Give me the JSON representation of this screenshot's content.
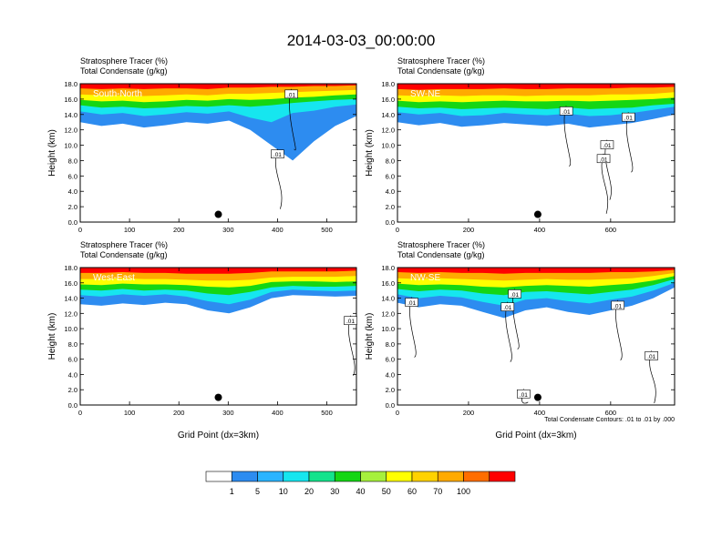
{
  "figure": {
    "title": "2014-03-03_00:00:00",
    "contour_note": "Total Condensate Contours: .01 to .01 by .000"
  },
  "colors": {
    "bins": [
      "#ffffff",
      "#2d8cf0",
      "#2ab4ff",
      "#16e6ef",
      "#14e38c",
      "#15d614",
      "#a6f03c",
      "#ffff00",
      "#ffd200",
      "#ffaa00",
      "#ff6e00",
      "#ff0000"
    ],
    "axes": "#000000",
    "contour": "#000000"
  },
  "chart_data": [
    {
      "type": "heatmap",
      "panel_label": "South-North",
      "title_lines": [
        "Stratosphere Tracer   (%)",
        "Total Condensate   (g/kg)"
      ],
      "xlabel": "",
      "ylabel": "Height (km)",
      "xlim": [
        0,
        560
      ],
      "ylim": [
        0,
        18
      ],
      "xticks": [
        0,
        100,
        200,
        300,
        400,
        500
      ],
      "yticks": [
        "0.0",
        "2.0",
        "4.0",
        "6.0",
        "8.0",
        "10.0",
        "12.0",
        "14.0",
        "16.0",
        "18.0"
      ],
      "tracer_layers": [
        {
          "level": 1,
          "base_km": [
            13.0,
            12.5,
            12.8,
            12.3,
            12.6,
            13.0,
            12.8,
            13.2,
            12.0,
            10.0,
            8.0,
            10.5,
            12.5,
            13.8
          ]
        },
        {
          "level": 10,
          "base_km": [
            14.4,
            14.0,
            14.2,
            13.8,
            14.0,
            14.3,
            14.1,
            14.4,
            13.6,
            13.0,
            14.2,
            14.5,
            15.0,
            15.3
          ]
        },
        {
          "level": 30,
          "base_km": [
            15.2,
            14.9,
            15.0,
            14.8,
            14.9,
            15.1,
            15.0,
            15.2,
            15.0,
            15.2,
            15.5,
            15.7,
            15.9,
            16.0
          ]
        },
        {
          "level": 50,
          "base_km": [
            15.9,
            15.7,
            15.8,
            15.6,
            15.7,
            15.9,
            15.8,
            16.0,
            15.9,
            16.0,
            16.2,
            16.3,
            16.5,
            16.6
          ]
        },
        {
          "level": 70,
          "base_km": [
            16.6,
            16.5,
            16.5,
            16.4,
            16.5,
            16.6,
            16.5,
            16.7,
            16.7,
            16.8,
            16.9,
            17.0,
            17.1,
            17.2
          ]
        },
        {
          "level": 100,
          "base_km": [
            17.4,
            17.3,
            17.4,
            17.3,
            17.4,
            17.4,
            17.3,
            17.5,
            17.5,
            17.6,
            17.6,
            17.7,
            17.7,
            17.8
          ]
        }
      ],
      "contour_labels": [
        {
          "text": ".01",
          "x": 428,
          "y": 16.6
        },
        {
          "text": ".01",
          "x": 400,
          "y": 8.8
        }
      ],
      "marker": {
        "x": 280,
        "y": 1.0
      }
    },
    {
      "type": "heatmap",
      "panel_label": "SW-NE",
      "title_lines": [
        "Stratosphere Tracer   (%)",
        "Total Condensate   (g/kg)"
      ],
      "xlabel": "",
      "ylabel": "Height (km)",
      "xlim": [
        0,
        780
      ],
      "ylim": [
        0,
        18
      ],
      "xticks": [
        0,
        200,
        400,
        600
      ],
      "yticks": [
        "0.0",
        "2.0",
        "4.0",
        "6.0",
        "8.0",
        "10.0",
        "12.0",
        "14.0",
        "16.0",
        "18.0"
      ],
      "tracer_layers": [
        {
          "level": 1,
          "base_km": [
            13.0,
            12.6,
            12.9,
            12.4,
            12.6,
            12.9,
            12.7,
            12.5,
            12.8,
            12.3,
            12.6,
            12.9,
            13.4,
            14.0
          ]
        },
        {
          "level": 10,
          "base_km": [
            14.3,
            14.0,
            14.2,
            13.8,
            13.9,
            14.2,
            14.0,
            13.9,
            14.1,
            13.8,
            13.9,
            14.2,
            14.6,
            15.0
          ]
        },
        {
          "level": 30,
          "base_km": [
            15.0,
            14.8,
            14.9,
            14.7,
            14.8,
            14.9,
            14.8,
            14.7,
            14.9,
            14.7,
            14.8,
            14.9,
            15.2,
            15.4
          ]
        },
        {
          "level": 50,
          "base_km": [
            15.8,
            15.6,
            15.7,
            15.6,
            15.7,
            15.8,
            15.7,
            15.7,
            15.8,
            15.7,
            15.8,
            15.9,
            16.0,
            16.2
          ]
        },
        {
          "level": 70,
          "base_km": [
            16.5,
            16.4,
            16.5,
            16.4,
            16.5,
            16.5,
            16.4,
            16.5,
            16.5,
            16.5,
            16.6,
            16.6,
            16.7,
            16.9
          ]
        },
        {
          "level": 100,
          "base_km": [
            17.3,
            17.2,
            17.3,
            17.3,
            17.3,
            17.4,
            17.3,
            17.3,
            17.4,
            17.4,
            17.4,
            17.5,
            17.5,
            17.6
          ]
        }
      ],
      "contour_labels": [
        {
          "text": ".01",
          "x": 475,
          "y": 14.4
        },
        {
          "text": ".01",
          "x": 650,
          "y": 13.6
        },
        {
          "text": ".01",
          "x": 590,
          "y": 10.0
        },
        {
          "text": ".01",
          "x": 580,
          "y": 8.2
        }
      ],
      "marker": {
        "x": 395,
        "y": 1.0
      }
    },
    {
      "type": "heatmap",
      "panel_label": "West-East",
      "title_lines": [
        "Stratosphere Tracer   (%)",
        "Total Condensate   (g/kg)"
      ],
      "xlabel": "Grid Point (dx=3km)",
      "ylabel": "Height (km)",
      "xlim": [
        0,
        560
      ],
      "ylim": [
        0,
        18
      ],
      "xticks": [
        0,
        100,
        200,
        300,
        400,
        500
      ],
      "yticks": [
        "0.0",
        "2.0",
        "4.0",
        "6.0",
        "8.0",
        "10.0",
        "12.0",
        "14.0",
        "16.0",
        "18.0"
      ],
      "tracer_layers": [
        {
          "level": 1,
          "base_km": [
            13.2,
            13.0,
            13.3,
            13.1,
            13.4,
            13.2,
            12.4,
            12.0,
            12.8,
            14.0,
            14.4,
            14.3,
            14.2,
            14.3
          ]
        },
        {
          "level": 10,
          "base_km": [
            14.4,
            14.2,
            14.5,
            14.3,
            14.5,
            14.2,
            13.6,
            13.2,
            13.8,
            14.8,
            15.1,
            15.0,
            14.9,
            15.0
          ]
        },
        {
          "level": 30,
          "base_km": [
            15.1,
            15.0,
            15.2,
            15.0,
            15.1,
            15.0,
            14.6,
            14.4,
            14.8,
            15.4,
            15.6,
            15.5,
            15.5,
            15.6
          ]
        },
        {
          "level": 50,
          "base_km": [
            15.8,
            15.7,
            15.9,
            15.8,
            15.8,
            15.7,
            15.5,
            15.4,
            15.6,
            16.1,
            16.2,
            16.2,
            16.1,
            16.2
          ]
        },
        {
          "level": 70,
          "base_km": [
            16.5,
            16.5,
            16.6,
            16.5,
            16.5,
            16.4,
            16.3,
            16.3,
            16.4,
            16.7,
            16.8,
            16.8,
            16.8,
            16.9
          ]
        },
        {
          "level": 100,
          "base_km": [
            17.3,
            17.3,
            17.4,
            17.3,
            17.3,
            17.2,
            17.2,
            17.2,
            17.3,
            17.5,
            17.5,
            17.5,
            17.5,
            17.6
          ]
        }
      ],
      "contour_labels": [
        {
          "text": ".01",
          "x": 548,
          "y": 11.0
        }
      ],
      "marker": {
        "x": 280,
        "y": 1.0
      }
    },
    {
      "type": "heatmap",
      "panel_label": "NW-SE",
      "title_lines": [
        "Stratosphere Tracer   (%)",
        "Total Condensate   (g/kg)"
      ],
      "xlabel": "Grid Point (dx=3km)",
      "ylabel": "Height (km)",
      "xlim": [
        0,
        780
      ],
      "ylim": [
        0,
        18
      ],
      "xticks": [
        0,
        200,
        400,
        600
      ],
      "yticks": [
        "0.0",
        "2.0",
        "4.0",
        "6.0",
        "8.0",
        "10.0",
        "12.0",
        "14.0",
        "16.0",
        "18.0"
      ],
      "tracer_layers": [
        {
          "level": 1,
          "base_km": [
            13.4,
            12.8,
            13.2,
            13.0,
            12.2,
            11.4,
            12.4,
            12.8,
            12.2,
            11.8,
            12.4,
            13.0,
            14.0,
            15.4
          ]
        },
        {
          "level": 10,
          "base_km": [
            14.5,
            14.0,
            14.3,
            14.1,
            13.5,
            13.0,
            13.8,
            14.0,
            13.6,
            13.3,
            13.8,
            14.2,
            15.0,
            16.0
          ]
        },
        {
          "level": 30,
          "base_km": [
            15.2,
            14.9,
            15.1,
            15.0,
            14.6,
            14.4,
            14.8,
            14.9,
            14.7,
            14.5,
            14.8,
            15.1,
            15.7,
            16.5
          ]
        },
        {
          "level": 50,
          "base_km": [
            15.9,
            15.7,
            15.8,
            15.7,
            15.5,
            15.4,
            15.6,
            15.7,
            15.6,
            15.5,
            15.7,
            15.9,
            16.3,
            16.9
          ]
        },
        {
          "level": 70,
          "base_km": [
            16.6,
            16.5,
            16.6,
            16.5,
            16.4,
            16.3,
            16.4,
            16.5,
            16.4,
            16.4,
            16.5,
            16.6,
            16.9,
            17.3
          ]
        },
        {
          "level": 100,
          "base_km": [
            17.4,
            17.3,
            17.4,
            17.3,
            17.3,
            17.2,
            17.3,
            17.3,
            17.3,
            17.3,
            17.4,
            17.4,
            17.5,
            17.7
          ]
        }
      ],
      "contour_labels": [
        {
          "text": ".01",
          "x": 40,
          "y": 13.4
        },
        {
          "text": ".01",
          "x": 330,
          "y": 14.5
        },
        {
          "text": ".01",
          "x": 310,
          "y": 12.8
        },
        {
          "text": ".01",
          "x": 620,
          "y": 13.0
        },
        {
          "text": ".01",
          "x": 715,
          "y": 6.4
        },
        {
          "text": ".01",
          "x": 355,
          "y": 1.4
        }
      ],
      "marker": {
        "x": 395,
        "y": 1.0
      }
    }
  ],
  "colorbar": {
    "labels": [
      "1",
      "5",
      "10",
      "20",
      "30",
      "40",
      "50",
      "60",
      "70",
      "100"
    ]
  }
}
